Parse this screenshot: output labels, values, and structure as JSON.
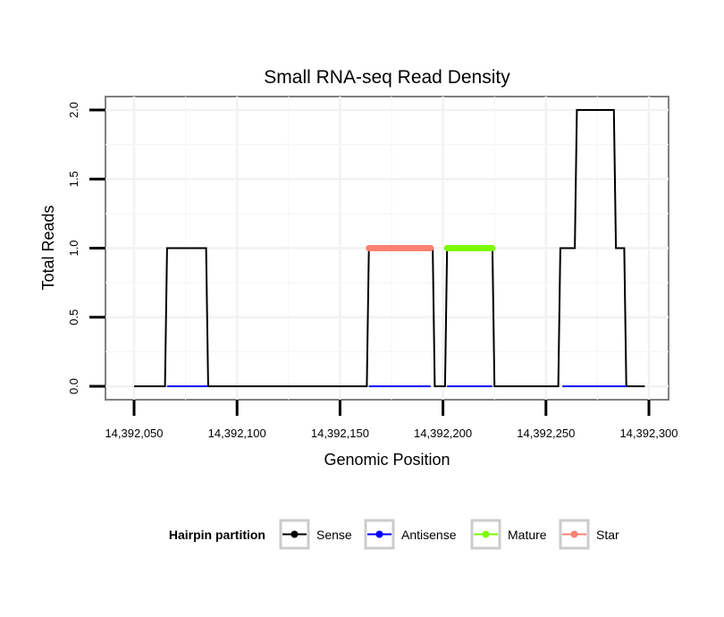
{
  "chart_data": {
    "type": "line",
    "title": "Small RNA-seq Read Density",
    "xlabel": "Genomic Position",
    "ylabel": "Total Reads",
    "xlim": [
      14392050,
      14392300
    ],
    "ylim": [
      0,
      2
    ],
    "x_ticks": [
      14392050,
      14392100,
      14392150,
      14392200,
      14392250,
      14392300
    ],
    "x_tick_labels": [
      "14,392,050",
      "14,392,100",
      "14,392,150",
      "14,392,200",
      "14,392,250",
      "14,392,300"
    ],
    "y_ticks": [
      0,
      0.5,
      1,
      1.5,
      2
    ],
    "y_tick_labels": [
      "0.0",
      "0.5",
      "1.0",
      "1.5",
      "2.0"
    ],
    "grid": true,
    "legend": {
      "title": "Hairpin partition",
      "position": "bottom",
      "entries": [
        {
          "name": "Sense",
          "color": "#000000"
        },
        {
          "name": "Antisense",
          "color": "#0000ff"
        },
        {
          "name": "Mature",
          "color": "#7cfc00"
        },
        {
          "name": "Star",
          "color": "#fa8072"
        }
      ]
    },
    "series": [
      {
        "name": "Sense",
        "color": "#000000",
        "stroke": "thin",
        "x": [
          14392050,
          14392065,
          14392066,
          14392085,
          14392086,
          14392163,
          14392164,
          14392195,
          14392196,
          14392201,
          14392202,
          14392224,
          14392225,
          14392256,
          14392257,
          14392264,
          14392265,
          14392272,
          14392273,
          14392283,
          14392284,
          14392288,
          14392289,
          14392298
        ],
        "y": [
          0,
          0,
          1,
          1,
          0,
          0,
          1,
          1,
          0,
          0,
          1,
          1,
          0,
          0,
          1,
          1,
          2,
          2,
          2,
          2,
          1,
          1,
          0,
          0
        ]
      },
      {
        "name": "Antisense",
        "color": "#0000ff",
        "stroke": "thin",
        "x": [
          14392066,
          14392086
        ],
        "y": [
          0,
          0
        ]
      },
      {
        "name": "Antisense",
        "color": "#0000ff",
        "stroke": "thin",
        "x": [
          14392164,
          14392194
        ],
        "y": [
          0,
          0
        ]
      },
      {
        "name": "Antisense",
        "color": "#0000ff",
        "stroke": "thin",
        "x": [
          14392202,
          14392224
        ],
        "y": [
          0,
          0
        ]
      },
      {
        "name": "Antisense",
        "color": "#0000ff",
        "stroke": "thin",
        "x": [
          14392258,
          14392289
        ],
        "y": [
          0,
          0
        ]
      },
      {
        "name": "Star",
        "color": "#fa8072",
        "stroke": "thick",
        "x": [
          14392164,
          14392194
        ],
        "y": [
          1,
          1
        ]
      },
      {
        "name": "Mature",
        "color": "#7cfc00",
        "stroke": "thick",
        "x": [
          14392202,
          14392224
        ],
        "y": [
          1,
          1
        ]
      }
    ]
  }
}
